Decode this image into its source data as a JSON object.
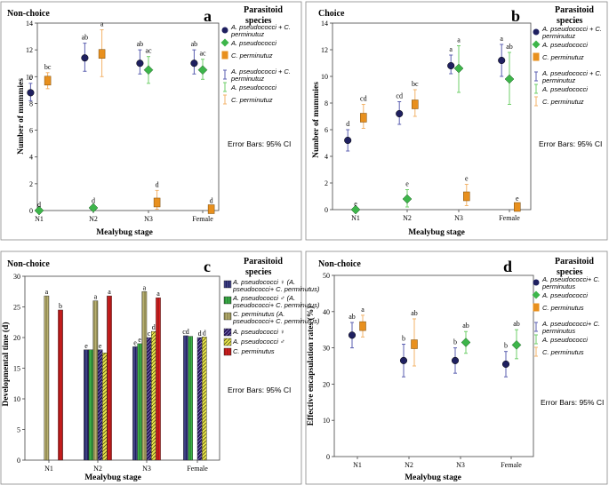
{
  "colors": {
    "combined": "#1f2060",
    "apseudo": "#3db54a",
    "cperm": "#e8901e",
    "cperm_bar": "#d42020",
    "hatch_bar": "#c9c96b",
    "err_combined": "#5b5fb0",
    "err_apseudo": "#6fcf6a",
    "err_cperm": "#f3b36a"
  },
  "panels": {
    "a": {
      "title": "Non-choice",
      "letter": "a",
      "xlabel": "Mealybug stage",
      "ylabel": "Number of mummies",
      "legend_title": "Parasitoid species",
      "legend_items": [
        "A. pseudococci + C. perminutuz",
        "A. pseudococci",
        "C. perminutuz",
        "A. pseudococci + C. perminutuz",
        "A. pseudococci",
        "C. perminutuz"
      ],
      "error_note": "Error Bars: 95% CI"
    },
    "b": {
      "title": "Choice",
      "letter": "b",
      "xlabel": "Mealybug stage",
      "ylabel": "Number of mummies",
      "legend_title": "Parasitoid species",
      "legend_items": [
        "A. pseudococci + C. perminutuz",
        "A. pseudococci",
        "C. perminutuz",
        "A. pseudococci + C. perminutuz",
        "A. pseudococci",
        "C. perminutuz"
      ],
      "error_note": "Error Bars: 95% CI"
    },
    "c": {
      "title": "Non-choice",
      "letter": "c",
      "xlabel": "Mealybug stage",
      "ylabel": "Developmental time (d)",
      "legend_title": "Parasitoid species",
      "legend_items": [
        "A. pseudococci ♀ (A. pseudococci+ C. perminutus)",
        "A. pseudococci ♂ (A. pseudococci+ C. perminutus)",
        "C. perminutus (A. pseudococci+ C. perminutus)",
        "A. pseudococci ♀",
        "A. pseudococci ♂",
        "C. perminutus"
      ],
      "error_note": "Error Bars: 95% CI"
    },
    "d": {
      "title": "Non-choice",
      "letter": "d",
      "xlabel": "Mealybug stage",
      "ylabel": "Effective encapsulation rates (%)",
      "legend_title": "Parasitoid species",
      "legend_items": [
        "A. pseudococci+ C. perminutus",
        "A. pseudococci",
        "C. perminutus",
        "A. pseudococci+ C. perminutus",
        "A. pseudococci",
        "C. perminutus"
      ],
      "error_note": "Error Bars: 95% CI"
    }
  },
  "chart_data": [
    {
      "panel": "a",
      "type": "scatter",
      "title": "Non-choice",
      "xlabel": "Mealybug stage",
      "ylabel": "Number of mummies",
      "categories": [
        "N1",
        "N2",
        "N3",
        "Female"
      ],
      "ylim": [
        0,
        14
      ],
      "yticks": [
        0,
        2,
        4,
        6,
        8,
        10,
        12,
        14
      ],
      "series": [
        {
          "name": "A. pseudococci + C. perminutuz",
          "key": "combined",
          "marker": "circle",
          "values": [
            8.8,
            11.4,
            11.0,
            11.0
          ],
          "ci_low": [
            8.2,
            10.4,
            10.2,
            10.2
          ],
          "ci_high": [
            9.5,
            12.5,
            12.0,
            12.0
          ],
          "letters": [
            "c",
            "ab",
            "ab",
            "ab"
          ]
        },
        {
          "name": "A. pseudococci",
          "key": "apseudo",
          "marker": "diamond",
          "values": [
            0.0,
            0.2,
            10.5,
            10.5
          ],
          "ci_low": [
            0.0,
            0.0,
            9.5,
            9.8
          ],
          "ci_high": [
            0.0,
            0.3,
            11.5,
            11.3
          ],
          "letters": [
            "d",
            "d",
            "ac",
            "ac"
          ]
        },
        {
          "name": "C. perminutuz",
          "key": "cperm",
          "marker": "square",
          "values": [
            9.7,
            11.7,
            0.6,
            0.1
          ],
          "ci_low": [
            9.1,
            10.0,
            0.1,
            0.0
          ],
          "ci_high": [
            10.3,
            13.5,
            1.5,
            0.3
          ],
          "letters": [
            "bc",
            "a",
            "d",
            "d"
          ]
        }
      ]
    },
    {
      "panel": "b",
      "type": "scatter",
      "title": "Choice",
      "xlabel": "Mealybug stage",
      "ylabel": "Number of mummies",
      "categories": [
        "N1",
        "N2",
        "N3",
        "Female"
      ],
      "ylim": [
        0,
        14
      ],
      "yticks": [
        0,
        2,
        4,
        6,
        8,
        10,
        12,
        14
      ],
      "series": [
        {
          "name": "A. pseudococci + C. perminutuz",
          "key": "combined",
          "marker": "circle",
          "values": [
            5.2,
            7.2,
            10.8,
            11.2
          ],
          "ci_low": [
            4.4,
            6.4,
            10.2,
            10.0
          ],
          "ci_high": [
            6.0,
            8.1,
            11.6,
            12.4
          ],
          "letters": [
            "d",
            "cd",
            "a",
            "a"
          ]
        },
        {
          "name": "A. pseudococci",
          "key": "apseudo",
          "marker": "diamond",
          "values": [
            0.0,
            0.8,
            10.6,
            9.8
          ],
          "ci_low": [
            0.0,
            0.2,
            8.8,
            7.9
          ],
          "ci_high": [
            0.0,
            1.5,
            12.3,
            11.8
          ],
          "letters": [
            "e",
            "e",
            "a",
            "ab"
          ]
        },
        {
          "name": "C. perminutuz",
          "key": "cperm",
          "marker": "square",
          "values": [
            6.9,
            7.9,
            1.0,
            0.2
          ],
          "ci_low": [
            6.1,
            7.0,
            0.3,
            0.0
          ],
          "ci_high": [
            7.9,
            9.0,
            1.9,
            0.4
          ],
          "letters": [
            "cd",
            "bc",
            "e",
            "e"
          ]
        }
      ]
    },
    {
      "panel": "c",
      "type": "bar",
      "title": "Non-choice",
      "xlabel": "Mealybug stage",
      "ylabel": "Developmental time (d)",
      "categories": [
        "N1",
        "N2",
        "N3",
        "Female"
      ],
      "ylim": [
        0,
        30
      ],
      "yticks": [
        0,
        5,
        10,
        15,
        20,
        25,
        30
      ],
      "series": [
        {
          "name": "A. pseudococci ♀ (A. pseudococci+ C. perminutus)",
          "key": "s1",
          "values": [
            null,
            18.0,
            18.5,
            20.3
          ],
          "letters": [
            "",
            "e",
            "e",
            "cd"
          ]
        },
        {
          "name": "A. pseudococci ♂ (A. pseudococci+ C. perminutus)",
          "key": "s2",
          "values": [
            null,
            18.0,
            19.0,
            20.2
          ],
          "letters": [
            "",
            "",
            "e",
            ""
          ]
        },
        {
          "name": "C. perminutus (A. pseudococci+ C. perminutus)",
          "key": "s3",
          "values": [
            26.8,
            26.0,
            27.5,
            null
          ],
          "letters": [
            "a",
            "a",
            "a",
            ""
          ]
        },
        {
          "name": "A. pseudococci ♀",
          "key": "s4",
          "values": [
            null,
            18.0,
            20.0,
            20.0
          ],
          "letters": [
            "",
            "e",
            "c",
            "d"
          ]
        },
        {
          "name": "A. pseudococci ♂",
          "key": "s5",
          "values": [
            null,
            17.5,
            21.0,
            20.1
          ],
          "letters": [
            "",
            "",
            "d",
            "d"
          ]
        },
        {
          "name": "C. perminutus",
          "key": "s6",
          "values": [
            24.5,
            26.8,
            26.5,
            null
          ],
          "letters": [
            "b",
            "a",
            "a",
            ""
          ]
        }
      ]
    },
    {
      "panel": "d",
      "type": "scatter",
      "title": "Non-choice",
      "xlabel": "Mealybug stage",
      "ylabel": "Effective encapsulation rates (%)",
      "categories": [
        "N1",
        "N2",
        "N3",
        "Female"
      ],
      "ylim": [
        0,
        50
      ],
      "yticks": [
        0,
        10,
        20,
        30,
        40,
        50
      ],
      "series": [
        {
          "name": "A. pseudococci+ C. perminutus",
          "key": "combined",
          "marker": "circle",
          "values": [
            33.5,
            26.5,
            26.5,
            25.5
          ],
          "ci_low": [
            30.0,
            22.0,
            23.0,
            22.0
          ],
          "ci_high": [
            37.0,
            31.0,
            30.0,
            29.0
          ],
          "letters": [
            "ab",
            "b",
            "b",
            "b"
          ]
        },
        {
          "name": "A. pseudococci",
          "key": "apseudo",
          "marker": "diamond",
          "values": [
            null,
            null,
            31.5,
            30.8
          ],
          "ci_low": [
            null,
            null,
            28.5,
            27.0
          ],
          "ci_high": [
            null,
            null,
            34.5,
            35.0
          ],
          "letters": [
            "",
            "",
            "ab",
            "ab"
          ]
        },
        {
          "name": "C. perminutus",
          "key": "cperm",
          "marker": "square",
          "values": [
            36.0,
            31.0,
            null,
            null
          ],
          "ci_low": [
            33.0,
            25.0,
            null,
            null
          ],
          "ci_high": [
            39.0,
            38.0,
            null,
            null
          ],
          "letters": [
            "a",
            "ab",
            "",
            ""
          ]
        }
      ]
    }
  ]
}
